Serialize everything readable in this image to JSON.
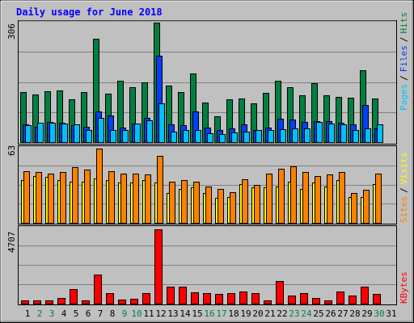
{
  "chart_data": [
    {
      "type": "bar",
      "panel": "hits-files-pages",
      "title": "Daily usage for June 2018",
      "ymax_label": "306",
      "ylim": [
        0,
        306
      ],
      "side_labels": [
        "Pages",
        "/",
        "Files",
        "/",
        "Hits"
      ],
      "categories": [
        "1",
        "2",
        "3",
        "4",
        "5",
        "6",
        "7",
        "8",
        "9",
        "10",
        "11",
        "12",
        "13",
        "14",
        "15",
        "16",
        "17",
        "18",
        "19",
        "20",
        "21",
        "22",
        "23",
        "24",
        "25",
        "26",
        "27",
        "28",
        "29",
        "30",
        "31"
      ],
      "series": [
        {
          "name": "Hits",
          "color": "#008040",
          "values": [
            128,
            122,
            131,
            133,
            110,
            129,
            265,
            125,
            158,
            140,
            154,
            306,
            144,
            128,
            175,
            102,
            66,
            110,
            112,
            99,
            126,
            158,
            140,
            119,
            150,
            120,
            116,
            114,
            183,
            111,
            0
          ]
        },
        {
          "name": "Files",
          "color": "#0040ff",
          "values": [
            46,
            40,
            52,
            50,
            44,
            40,
            78,
            69,
            38,
            48,
            62,
            221,
            45,
            44,
            79,
            38,
            32,
            36,
            46,
            32,
            37,
            60,
            58,
            51,
            53,
            54,
            49,
            45,
            95,
            36,
            0
          ]
        },
        {
          "name": "Pages",
          "color": "#00c0ff",
          "values": [
            44,
            49,
            50,
            47,
            46,
            32,
            62,
            31,
            31,
            47,
            56,
            100,
            26,
            31,
            31,
            23,
            21,
            25,
            26,
            31,
            31,
            34,
            35,
            35,
            52,
            48,
            45,
            31,
            35,
            46,
            0
          ]
        }
      ]
    },
    {
      "type": "bar",
      "panel": "visits-sites",
      "ymax_label": "63",
      "ylim": [
        0,
        63
      ],
      "side_labels": [
        "Sites",
        "/",
        "Visits"
      ],
      "categories": [
        "1",
        "2",
        "3",
        "4",
        "5",
        "6",
        "7",
        "8",
        "9",
        "10",
        "11",
        "12",
        "13",
        "14",
        "15",
        "16",
        "17",
        "18",
        "19",
        "20",
        "21",
        "22",
        "23",
        "24",
        "25",
        "26",
        "27",
        "28",
        "29",
        "30",
        "31"
      ],
      "series": [
        {
          "name": "Visits",
          "color": "#ffff00",
          "values": [
            36,
            40,
            39,
            36,
            35,
            35,
            38,
            36,
            34,
            34,
            36,
            34,
            25,
            29,
            30,
            25,
            21,
            22,
            33,
            30,
            30,
            31,
            35,
            29,
            34,
            31,
            36,
            22,
            22,
            33,
            0
          ]
        },
        {
          "name": "Sites",
          "color": "#ff8000",
          "values": [
            44,
            43,
            42,
            43,
            47,
            45,
            63,
            44,
            42,
            42,
            41,
            57,
            35,
            36,
            35,
            31,
            29,
            26,
            37,
            32,
            42,
            46,
            48,
            43,
            40,
            41,
            43,
            25,
            28,
            42,
            0
          ]
        }
      ]
    },
    {
      "type": "bar",
      "panel": "kbytes",
      "ymax_label": "4707",
      "ylim": [
        0,
        4707
      ],
      "side_labels": [
        "KBytes"
      ],
      "categories": [
        "1",
        "2",
        "3",
        "4",
        "5",
        "6",
        "7",
        "8",
        "9",
        "10",
        "11",
        "12",
        "13",
        "14",
        "15",
        "16",
        "17",
        "18",
        "19",
        "20",
        "21",
        "22",
        "23",
        "24",
        "25",
        "26",
        "27",
        "28",
        "29",
        "30",
        "31"
      ],
      "series": [
        {
          "name": "KBytes",
          "color": "#ff0000",
          "values": [
            220,
            190,
            180,
            380,
            940,
            180,
            1820,
            680,
            240,
            300,
            640,
            4707,
            1050,
            1050,
            730,
            680,
            620,
            650,
            780,
            650,
            190,
            1450,
            500,
            640,
            380,
            190,
            780,
            500,
            1100,
            610,
            0
          ]
        }
      ]
    }
  ],
  "colors": {
    "background": "#c0c0c0",
    "title": "#0000ff",
    "label": "#000000",
    "weekend": "#008040",
    "grid": "#808080"
  },
  "weekend_days": [
    "2",
    "3",
    "9",
    "10",
    "16",
    "17",
    "23",
    "24",
    "30"
  ]
}
